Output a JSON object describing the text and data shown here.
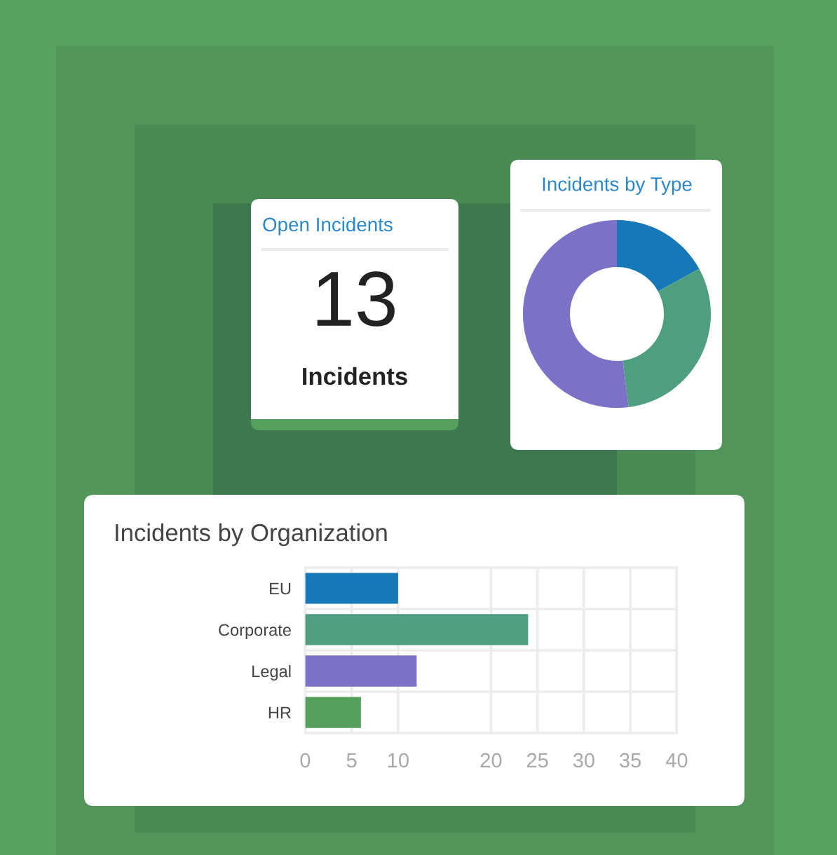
{
  "chart_data": [
    {
      "type": "other",
      "title": "Open Incidents",
      "annotations": [
        "13",
        "Incidents"
      ]
    },
    {
      "type": "donut",
      "title": "Incidents by Type",
      "categories": [
        null,
        null,
        null
      ],
      "values": [
        17,
        31,
        52
      ],
      "colors": [
        "#1778b8",
        "#4e9e80",
        "#7b72c8"
      ]
    },
    {
      "type": "bar",
      "orientation": "horizontal",
      "title": "Incidents by Organization",
      "categories": [
        "EU",
        "Corporate",
        "Legal",
        "HR"
      ],
      "values": [
        10,
        24,
        12,
        6
      ],
      "colors": [
        "#1778b8",
        "#4e9e80",
        "#7b72c8",
        "#55a05c"
      ],
      "xlim": [
        0,
        40
      ],
      "xticks": [
        0,
        5,
        10,
        20,
        25,
        30,
        35,
        40
      ],
      "grid": true
    }
  ]
}
